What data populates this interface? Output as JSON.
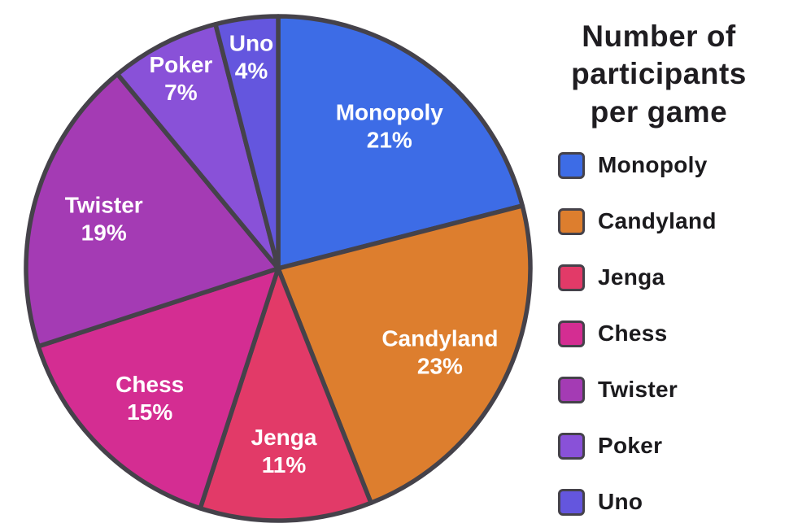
{
  "legend": {
    "title": "Number of\nparticipants\nper game"
  },
  "chart_data": {
    "type": "pie",
    "title": "Number of participants per game",
    "categories": [
      "Monopoly",
      "Candyland",
      "Jenga",
      "Chess",
      "Twister",
      "Poker",
      "Uno"
    ],
    "values": [
      21,
      23,
      11,
      15,
      19,
      7,
      4
    ],
    "value_unit": "%",
    "total": 100,
    "colors": [
      "#3d6ce6",
      "#dd7e2e",
      "#e23a68",
      "#d42d92",
      "#a43bb4",
      "#8951d8",
      "#6456de"
    ],
    "slice_labels": [
      "Monopoly\n21%",
      "Candyland\n23%",
      "Jenga\n11%",
      "Chess\n15%",
      "Twister\n19%",
      "Poker\n7%",
      "Uno\n4%"
    ],
    "start_angle_deg": 0,
    "direction": "clockwise",
    "stroke_color": "#45424a",
    "slice_label_color": "#ffffff",
    "legend_position": "right",
    "background": "#ffffff"
  }
}
